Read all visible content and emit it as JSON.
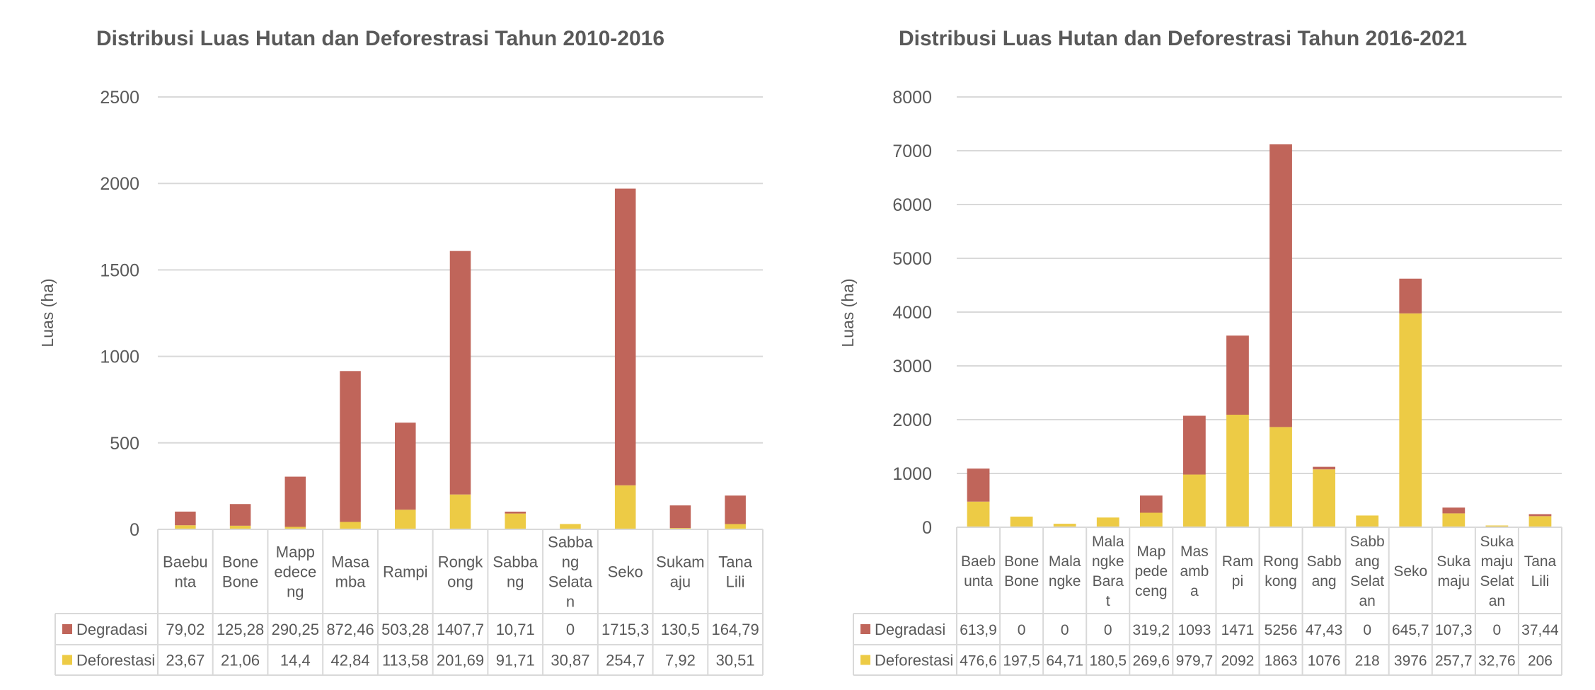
{
  "colors": {
    "degradasi": "#C0655A",
    "deforestasi": "#EDCB45",
    "grid": "#D9D9D9",
    "text": "#595959"
  },
  "chart_data": [
    {
      "type": "bar",
      "stacked": true,
      "title": "Distribusi Luas Hutan dan Deforestrasi Tahun 2010-2016",
      "ylabel": "Luas (ha)",
      "ylim": [
        0,
        2500
      ],
      "yticks": [
        0,
        500,
        1000,
        1500,
        2000,
        2500
      ],
      "grid": true,
      "data_table": true,
      "categories": [
        [
          "Baebu",
          "nta"
        ],
        [
          "Bone",
          "Bone"
        ],
        [
          "Mapp",
          "edece",
          "ng"
        ],
        [
          "Masa",
          "mba"
        ],
        [
          "Rampi"
        ],
        [
          "Rongk",
          "ong"
        ],
        [
          "Sabba",
          "ng"
        ],
        [
          "Sabba",
          "ng",
          "Selata",
          "n"
        ],
        [
          "Seko"
        ],
        [
          "Sukam",
          "aju"
        ],
        [
          "Tana",
          "Lili"
        ]
      ],
      "series": [
        {
          "name": "Degradasi",
          "values": [
            79.02,
            125.28,
            290.25,
            872.46,
            503.28,
            1407.7,
            10.71,
            0,
            1715.3,
            130.5,
            164.79
          ],
          "labels": [
            "79,02",
            "125,28",
            "290,25",
            "872,46",
            "503,28",
            "1407,7",
            "10,71",
            "0",
            "1715,3",
            "130,5",
            "164,79"
          ]
        },
        {
          "name": "Deforestasi",
          "values": [
            23.67,
            21.06,
            14.4,
            42.84,
            113.58,
            201.69,
            91.71,
            30.87,
            254.7,
            7.92,
            30.51
          ],
          "labels": [
            "23,67",
            "21,06",
            "14,4",
            "42,84",
            "113,58",
            "201,69",
            "91,71",
            "30,87",
            "254,7",
            "7,92",
            "30,51"
          ]
        }
      ]
    },
    {
      "type": "bar",
      "stacked": true,
      "title": "Distribusi Luas Hutan dan Deforestrasi Tahun 2016-2021",
      "ylabel": "Luas (ha)",
      "ylim": [
        0,
        8000
      ],
      "yticks": [
        0,
        1000,
        2000,
        3000,
        4000,
        5000,
        6000,
        7000,
        8000
      ],
      "grid": true,
      "data_table": true,
      "categories": [
        [
          "Baeb",
          "unta"
        ],
        [
          "Bone",
          "Bone"
        ],
        [
          "Mala",
          "ngke"
        ],
        [
          "Mala",
          "ngke",
          "Bara",
          "t"
        ],
        [
          "Map",
          "pede",
          "ceng"
        ],
        [
          "Mas",
          "amb",
          "a"
        ],
        [
          "Ram",
          "pi"
        ],
        [
          "Rong",
          "kong"
        ],
        [
          "Sabb",
          "ang"
        ],
        [
          "Sabb",
          "ang",
          "Selat",
          "an"
        ],
        [
          "Seko"
        ],
        [
          "Suka",
          "maju"
        ],
        [
          "Suka",
          "maju",
          "Selat",
          "an"
        ],
        [
          "Tana",
          "Lili"
        ]
      ],
      "series": [
        {
          "name": "Degradasi",
          "values": [
            613.9,
            0,
            0,
            0,
            319.2,
            1093,
            1471,
            5256,
            47.43,
            0,
            645.7,
            107.3,
            0,
            37.44
          ],
          "labels": [
            "613,9",
            "0",
            "0",
            "0",
            "319,2",
            "1093",
            "1471",
            "5256",
            "47,43",
            "0",
            "645,7",
            "107,3",
            "0",
            "37,44"
          ]
        },
        {
          "name": "Deforestasi",
          "values": [
            476.6,
            197.5,
            64.71,
            180.5,
            269.6,
            979.7,
            2092,
            1863,
            1076,
            218,
            3976,
            257.7,
            32.76,
            206
          ],
          "labels": [
            "476,6",
            "197,5",
            "64,71",
            "180,5",
            "269,6",
            "979,7",
            "2092",
            "1863",
            "1076",
            "218",
            "3976",
            "257,7",
            "32,76",
            "206"
          ]
        }
      ]
    }
  ]
}
